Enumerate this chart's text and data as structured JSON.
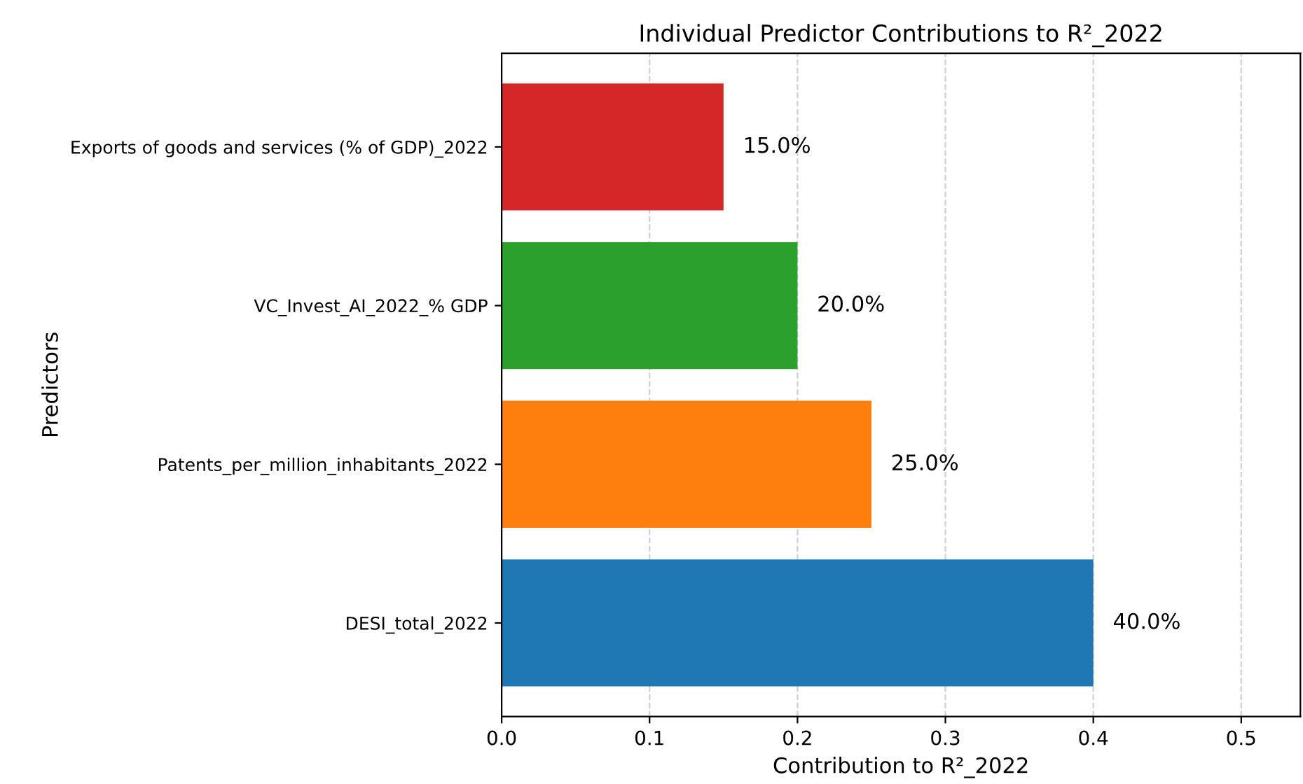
{
  "chart_data": {
    "type": "bar",
    "orientation": "horizontal",
    "title": "Individual Predictor Contributions to R²_2022",
    "xlabel": "Contribution to R²_2022",
    "ylabel": "Predictors",
    "categories": [
      "Exports of goods and services (% of GDP)_2022",
      "VC_Invest_AI_2022_% GDP",
      "Patents_per_million_inhabitants_2022",
      "DESI_total_2022"
    ],
    "values": [
      0.15,
      0.2,
      0.25,
      0.4
    ],
    "colors": [
      "#d62728",
      "#2ca02c",
      "#ff7f0e",
      "#1f77b4"
    ],
    "value_labels": [
      "15.0%",
      "20.0%",
      "25.0%",
      "40.0%"
    ],
    "xlim": [
      0,
      0.54
    ],
    "xticks": [
      {
        "value": 0,
        "label": "0.0"
      },
      0.1,
      0.2,
      0.3,
      0.4,
      0.5
    ],
    "grid": "x"
  }
}
